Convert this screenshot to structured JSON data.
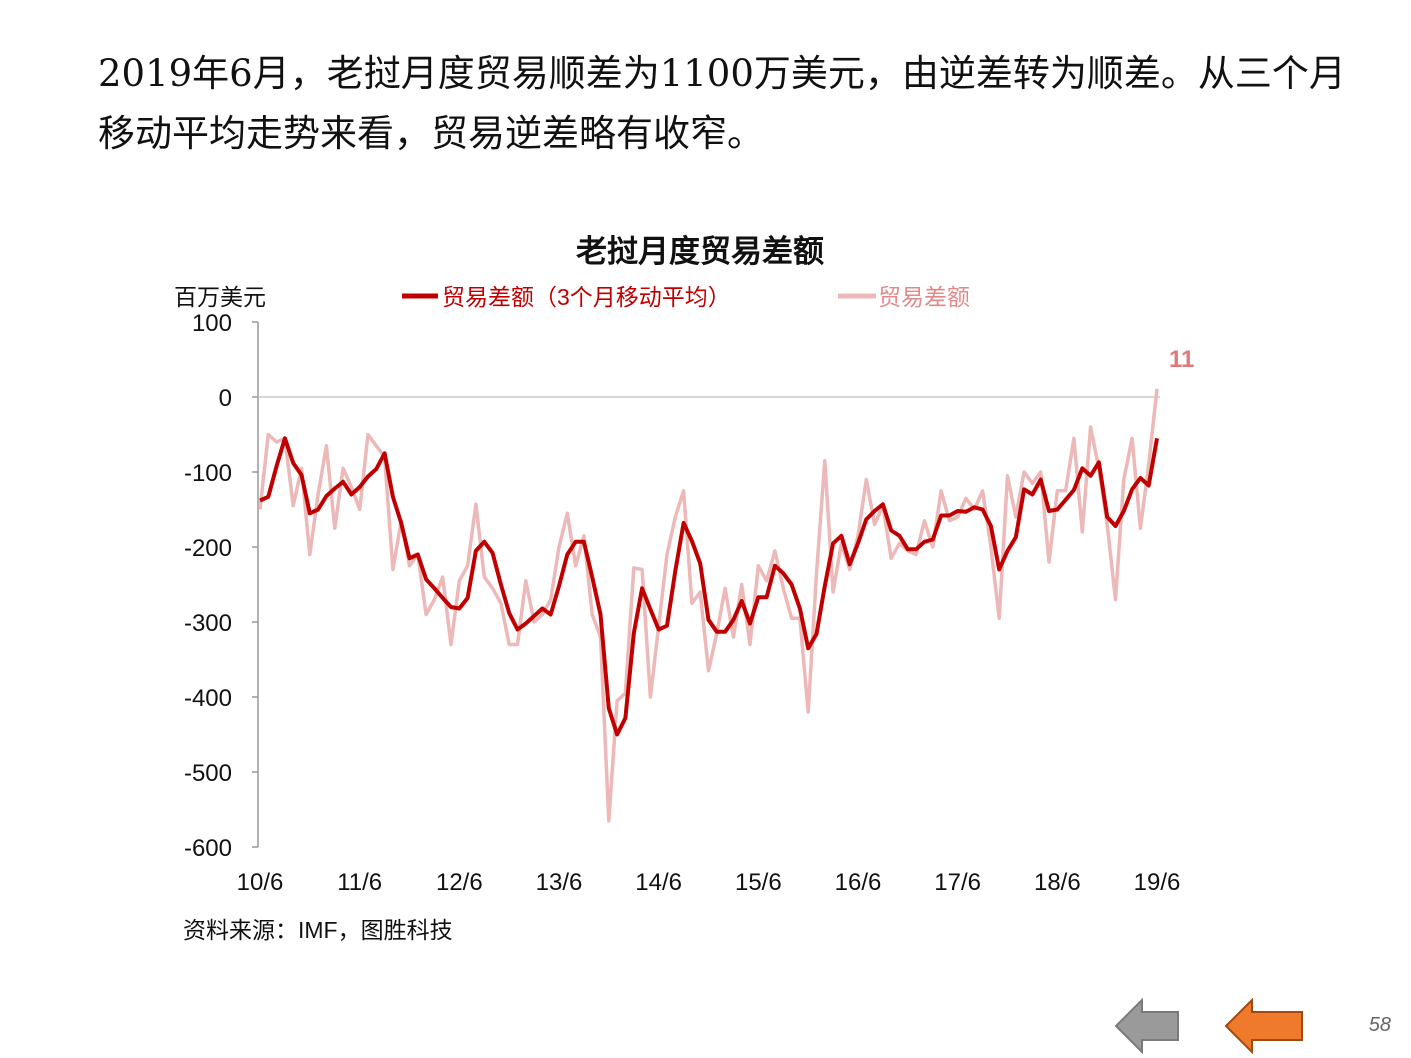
{
  "slide": {
    "intro_text": "2019年6月，老挝月度贸易顺差为1100万美元，由逆差转为顺差。从三个月移动平均走势来看，贸易逆差略有收窄。",
    "source": "资料来源：IMF，图胜科技",
    "page_number": "58"
  },
  "nav": {
    "back_icon": "gray-left-arrow-icon",
    "prev_icon": "orange-left-arrow-icon",
    "back_color": "#999999",
    "prev_color": "#F07A2C"
  },
  "chart_data": {
    "type": "line",
    "title": "老挝月度贸易差额",
    "ylabel": "百万美元",
    "ylim": [
      -600,
      100
    ],
    "yticks": [
      "100",
      "0",
      "-100",
      "-200",
      "-300",
      "-400",
      "-500",
      "-600"
    ],
    "xticks": [
      "10/6",
      "11/6",
      "12/6",
      "13/6",
      "14/6",
      "15/6",
      "16/6",
      "17/6",
      "18/6",
      "19/6"
    ],
    "x_start": "2010-06",
    "x_end": "2019-06",
    "grid": false,
    "legend_position": "top",
    "end_label": "11",
    "series": [
      {
        "name": "贸易差额（3个月移动平均）",
        "color": "#C00000",
        "values": [
          -138,
          -133,
          -92,
          -55,
          -88,
          -104,
          -155,
          -150,
          -132,
          -122,
          -113,
          -130,
          -120,
          -106,
          -96,
          -75,
          -133,
          -168,
          -215,
          -210,
          -243,
          -255,
          -268,
          -280,
          -282,
          -268,
          -205,
          -193,
          -208,
          -250,
          -288,
          -310,
          -302,
          -292,
          -282,
          -290,
          -252,
          -210,
          -193,
          -193,
          -240,
          -290,
          -415,
          -450,
          -428,
          -315,
          -255,
          -283,
          -310,
          -305,
          -232,
          -168,
          -192,
          -222,
          -297,
          -313,
          -313,
          -297,
          -272,
          -302,
          -267,
          -267,
          -225,
          -235,
          -250,
          -282,
          -335,
          -316,
          -252,
          -195,
          -185,
          -223,
          -195,
          -163,
          -152,
          -143,
          -178,
          -185,
          -203,
          -203,
          -193,
          -190,
          -158,
          -158,
          -152,
          -153,
          -147,
          -150,
          -172,
          -230,
          -205,
          -187,
          -123,
          -130,
          -110,
          -152,
          -150,
          -137,
          -124,
          -95,
          -105,
          -87,
          -160,
          -172,
          -152,
          -123,
          -108,
          -118,
          -55
        ]
      },
      {
        "name": "贸易差额",
        "color": "#EDB8B8",
        "values": [
          -150,
          -50,
          -60,
          -55,
          -145,
          -95,
          -210,
          -130,
          -65,
          -175,
          -95,
          -120,
          -150,
          -50,
          -65,
          -80,
          -230,
          -165,
          -225,
          -210,
          -290,
          -270,
          -240,
          -330,
          -245,
          -225,
          -143,
          -240,
          -255,
          -275,
          -330,
          -330,
          -245,
          -300,
          -290,
          -270,
          -200,
          -155,
          -225,
          -185,
          -290,
          -320,
          -565,
          -405,
          -395,
          -228,
          -230,
          -400,
          -305,
          -210,
          -160,
          -125,
          -275,
          -260,
          -365,
          -315,
          -255,
          -320,
          -250,
          -330,
          -225,
          -245,
          -205,
          -255,
          -295,
          -295,
          -420,
          -235,
          -85,
          -260,
          -195,
          -230,
          -185,
          -110,
          -170,
          -145,
          -215,
          -195,
          -205,
          -210,
          -165,
          -200,
          -125,
          -165,
          -160,
          -135,
          -150,
          -125,
          -200,
          -295,
          -105,
          -160,
          -100,
          -115,
          -100,
          -220,
          -125,
          -125,
          -55,
          -180,
          -40,
          -95,
          -170,
          -270,
          -110,
          -55,
          -175,
          -90,
          11
        ]
      }
    ]
  }
}
